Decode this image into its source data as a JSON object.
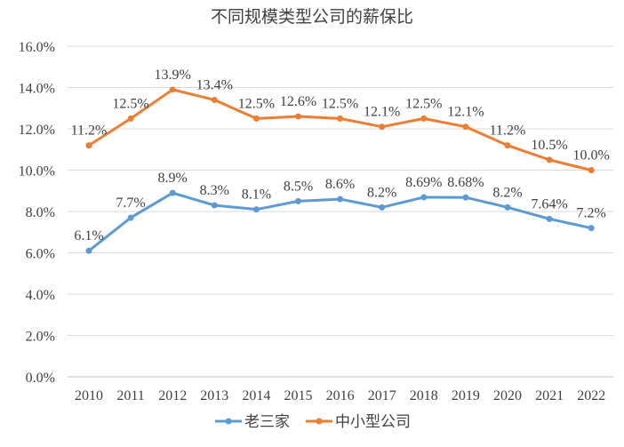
{
  "chart_data": {
    "type": "line",
    "title": "不同规模类型公司的薪保比",
    "categories": [
      "2010",
      "2011",
      "2012",
      "2013",
      "2014",
      "2015",
      "2016",
      "2017",
      "2018",
      "2019",
      "2020",
      "2021",
      "2022"
    ],
    "ylim": [
      0,
      16
    ],
    "yticks": [
      "0.0%",
      "2.0%",
      "4.0%",
      "6.0%",
      "8.0%",
      "10.0%",
      "12.0%",
      "14.0%",
      "16.0%"
    ],
    "grid": true,
    "legend_position": "bottom",
    "series": [
      {
        "name": "老三家",
        "color": "#5B9BD5",
        "values": [
          6.1,
          7.7,
          8.9,
          8.3,
          8.1,
          8.5,
          8.6,
          8.2,
          8.69,
          8.68,
          8.2,
          7.64,
          7.2
        ],
        "labels": [
          "6.1%",
          "7.7%",
          "8.9%",
          "8.3%",
          "8.1%",
          "8.5%",
          "8.6%",
          "8.2%",
          "8.69%",
          "8.68%",
          "8.2%",
          "7.64%",
          "7.2%"
        ]
      },
      {
        "name": "中小型公司",
        "color": "#ED7D31",
        "values": [
          11.2,
          12.5,
          13.9,
          13.4,
          12.5,
          12.6,
          12.5,
          12.1,
          12.5,
          12.1,
          11.2,
          10.5,
          10.0
        ],
        "labels": [
          "11.2%",
          "12.5%",
          "13.9%",
          "13.4%",
          "12.5%",
          "12.6%",
          "12.5%",
          "12.1%",
          "12.5%",
          "12.1%",
          "11.2%",
          "10.5%",
          "10.0%"
        ]
      }
    ]
  }
}
